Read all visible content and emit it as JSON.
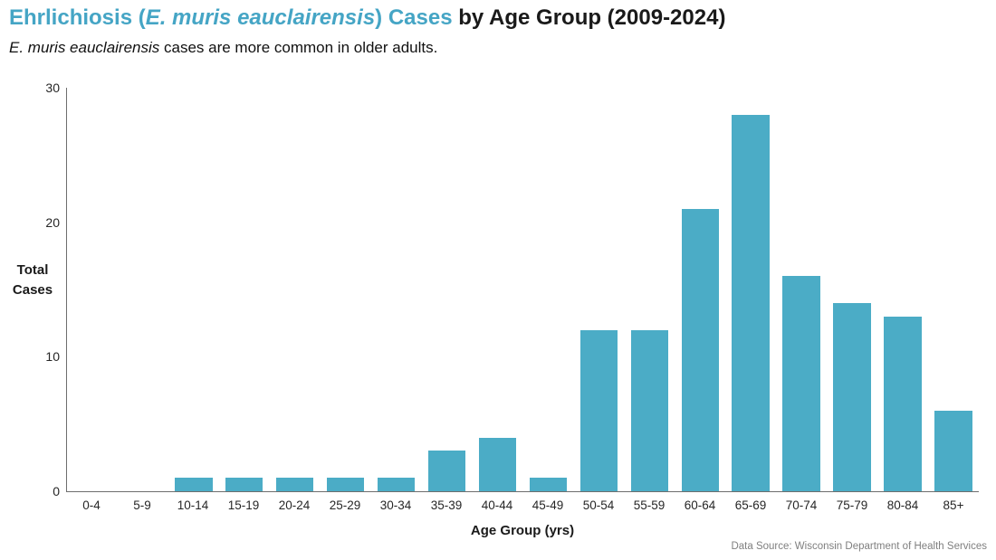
{
  "title": {
    "accent_prefix": "Ehrlichiosis (",
    "accent_italic": "E. muris eauclairensis",
    "accent_suffix": ") Cases",
    "rest": " by Age Group (2009-2024)"
  },
  "subtitle": {
    "italic": "E. muris eauclairensis",
    "rest": " cases are more common in older adults."
  },
  "y_axis": {
    "title_line1": "Total",
    "title_line2": "Cases"
  },
  "x_axis": {
    "title": "Age Group (yrs)"
  },
  "footer": {
    "text": "Data Source: Wisconsin Department of Health Services"
  },
  "colors": {
    "bar": "#4BACC6",
    "title_accent": "#45A5C5",
    "axis_line": "#6e6e6e",
    "footer_text": "#7f7f7f"
  },
  "chart_data": {
    "type": "bar",
    "title": "Ehrlichiosis (E. muris eauclairensis) Cases by Age Group (2009-2024)",
    "subtitle": "E. muris eauclairensis cases are more common in older adults.",
    "xlabel": "Age Group (yrs)",
    "ylabel": "Total Cases",
    "categories": [
      "0-4",
      "5-9",
      "10-14",
      "15-19",
      "20-24",
      "25-29",
      "30-34",
      "35-39",
      "40-44",
      "45-49",
      "50-54",
      "55-59",
      "60-64",
      "65-69",
      "70-74",
      "75-79",
      "80-84",
      "85+"
    ],
    "values": [
      0,
      0,
      1,
      1,
      1,
      1,
      1,
      3,
      4,
      1,
      12,
      12,
      21,
      28,
      16,
      14,
      13,
      6
    ],
    "ylim": [
      0,
      30
    ],
    "y_ticks": [
      0,
      10,
      20,
      30
    ],
    "grid": false,
    "legend": "none",
    "data_source": "Data Source: Wisconsin Department of Health Services"
  }
}
